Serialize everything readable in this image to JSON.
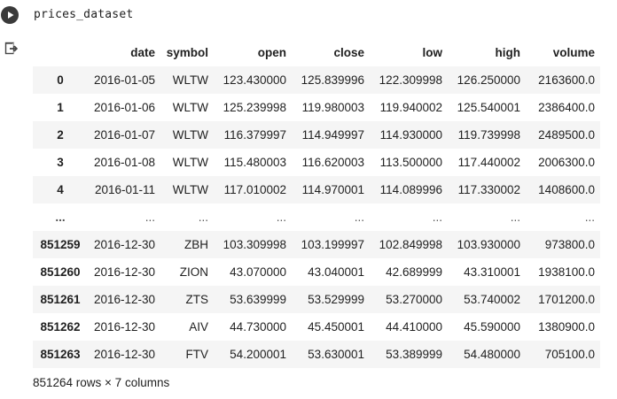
{
  "cell": {
    "code": "prices_dataset"
  },
  "icons": {
    "run": "play-icon",
    "output": "output-redirect-icon"
  },
  "table": {
    "columns": [
      "",
      "date",
      "symbol",
      "open",
      "close",
      "low",
      "high",
      "volume"
    ],
    "rows": [
      [
        "0",
        "2016-01-05",
        "WLTW",
        "123.430000",
        "125.839996",
        "122.309998",
        "126.250000",
        "2163600.0"
      ],
      [
        "1",
        "2016-01-06",
        "WLTW",
        "125.239998",
        "119.980003",
        "119.940002",
        "125.540001",
        "2386400.0"
      ],
      [
        "2",
        "2016-01-07",
        "WLTW",
        "116.379997",
        "114.949997",
        "114.930000",
        "119.739998",
        "2489500.0"
      ],
      [
        "3",
        "2016-01-08",
        "WLTW",
        "115.480003",
        "116.620003",
        "113.500000",
        "117.440002",
        "2006300.0"
      ],
      [
        "4",
        "2016-01-11",
        "WLTW",
        "117.010002",
        "114.970001",
        "114.089996",
        "117.330002",
        "1408600.0"
      ],
      [
        "...",
        "...",
        "...",
        "...",
        "...",
        "...",
        "...",
        "..."
      ],
      [
        "851259",
        "2016-12-30",
        "ZBH",
        "103.309998",
        "103.199997",
        "102.849998",
        "103.930000",
        "973800.0"
      ],
      [
        "851260",
        "2016-12-30",
        "ZION",
        "43.070000",
        "43.040001",
        "42.689999",
        "43.310001",
        "1938100.0"
      ],
      [
        "851261",
        "2016-12-30",
        "ZTS",
        "53.639999",
        "53.529999",
        "53.270000",
        "53.740002",
        "1701200.0"
      ],
      [
        "851262",
        "2016-12-30",
        "AIV",
        "44.730000",
        "45.450001",
        "44.410000",
        "45.590000",
        "1380900.0"
      ],
      [
        "851263",
        "2016-12-30",
        "FTV",
        "54.200001",
        "53.630001",
        "53.389999",
        "54.480000",
        "705100.0"
      ]
    ]
  },
  "footer": "851264 rows × 7 columns"
}
